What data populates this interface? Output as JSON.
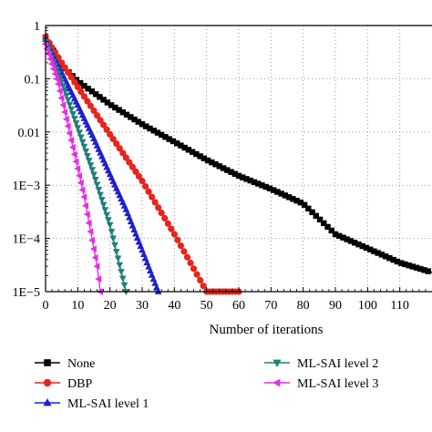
{
  "chart_data": {
    "type": "line",
    "title": "",
    "xlabel": "Number of iterations",
    "ylabel": "",
    "xscale": "linear",
    "yscale": "log",
    "xlim": [
      0,
      120
    ],
    "ylim": [
      1e-05,
      1
    ],
    "grid": true,
    "legend_position": "bottom",
    "x_ticks": [
      0,
      10,
      20,
      30,
      40,
      50,
      60,
      70,
      80,
      90,
      100,
      110
    ],
    "y_ticks": [
      {
        "value": 1e-05,
        "label": "1E−5"
      },
      {
        "value": 0.0001,
        "label": "1E−4"
      },
      {
        "value": 0.001,
        "label": "1E−3"
      },
      {
        "value": 0.01,
        "label": "0.01"
      },
      {
        "value": 0.1,
        "label": "0.1"
      },
      {
        "value": 1,
        "label": "1"
      }
    ],
    "series": [
      {
        "name": "None",
        "color": "#000000",
        "marker": "square",
        "x": [
          0,
          5,
          10,
          20,
          30,
          40,
          50,
          60,
          70,
          80,
          90,
          100,
          110,
          120
        ],
        "y": [
          0.6,
          0.18,
          0.09,
          0.033,
          0.014,
          0.0065,
          0.003,
          0.0015,
          0.00085,
          0.00045,
          0.00012,
          6.5e-05,
          3.5e-05,
          2.3e-05
        ]
      },
      {
        "name": "DBP",
        "color": "#e8241c",
        "marker": "circle",
        "x": [
          0,
          5,
          10,
          20,
          30,
          40,
          50,
          60
        ],
        "y": [
          0.6,
          0.2,
          0.07,
          0.009,
          0.0012,
          0.00012,
          1e-05,
          1e-05
        ]
      },
      {
        "name": "ML-SAI level 1",
        "color": "#1f1fcf",
        "marker": "triangle-up",
        "x": [
          0,
          5,
          10,
          15,
          20,
          25,
          30,
          35
        ],
        "y": [
          0.55,
          0.13,
          0.032,
          0.0075,
          0.0016,
          0.00035,
          6e-05,
          1e-05
        ]
      },
      {
        "name": "ML-SAI level 2",
        "color": "#1e7f7a",
        "marker": "triangle-down",
        "x": [
          0,
          5,
          10,
          15,
          20,
          25
        ],
        "y": [
          0.5,
          0.09,
          0.012,
          0.0016,
          0.00018,
          1e-05
        ]
      },
      {
        "name": "ML-SAI level 3",
        "color": "#e62ee6",
        "marker": "triangle-left",
        "x": [
          0,
          4,
          8,
          12,
          16,
          17
        ],
        "y": [
          0.45,
          0.08,
          0.007,
          0.0006,
          3e-05,
          1e-05
        ]
      }
    ]
  }
}
